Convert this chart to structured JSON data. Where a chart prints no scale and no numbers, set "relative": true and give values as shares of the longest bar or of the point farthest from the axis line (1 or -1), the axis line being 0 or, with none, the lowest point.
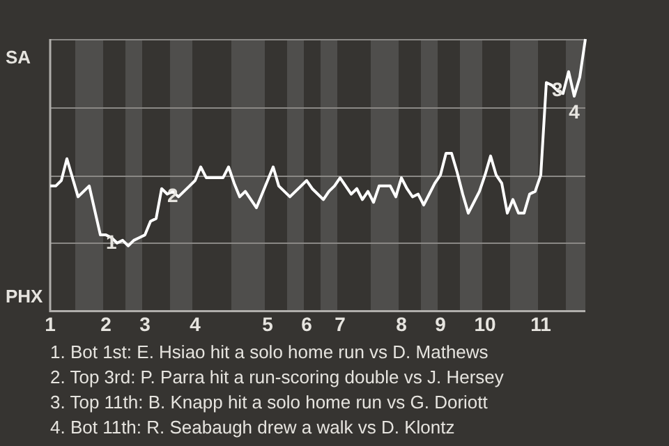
{
  "chart_data": {
    "type": "line",
    "relative": true,
    "categories": [
      "1",
      null,
      null,
      null,
      null,
      null,
      null,
      null,
      null,
      null,
      "2",
      null,
      null,
      null,
      null,
      null,
      null,
      "3",
      null,
      null,
      null,
      null,
      null,
      null,
      null,
      null,
      "4",
      null,
      null,
      null,
      null,
      null,
      null,
      null,
      null,
      null,
      null,
      null,
      null,
      "5",
      null,
      null,
      null,
      null,
      null,
      null,
      "6",
      null,
      null,
      null,
      null,
      null,
      "7",
      null,
      null,
      null,
      null,
      null,
      null,
      null,
      null,
      null,
      null,
      "8",
      null,
      null,
      null,
      null,
      null,
      null,
      "9",
      null,
      null,
      null,
      null,
      null,
      null,
      null,
      "10",
      null,
      null,
      null,
      null,
      null,
      null,
      null,
      null,
      null,
      "11",
      null,
      null,
      null,
      null,
      null,
      null,
      null,
      null
    ],
    "series": [
      {
        "color": "#ffffff",
        "values": [
          0.46,
          0.46,
          0.48,
          0.56,
          0.49,
          0.42,
          0.44,
          0.46,
          0.37,
          0.28,
          0.28,
          0.27,
          0.25,
          0.26,
          0.24,
          0.26,
          0.27,
          0.28,
          0.33,
          0.34,
          0.45,
          0.43,
          0.44,
          0.42,
          0.44,
          0.46,
          0.48,
          0.53,
          0.49,
          0.49,
          0.49,
          0.49,
          0.53,
          0.47,
          0.42,
          0.44,
          0.41,
          0.38,
          0.43,
          0.48,
          0.53,
          0.46,
          0.44,
          0.42,
          0.44,
          0.46,
          0.48,
          0.45,
          0.43,
          0.41,
          0.44,
          0.46,
          0.49,
          0.46,
          0.43,
          0.45,
          0.41,
          0.44,
          0.4,
          0.46,
          0.46,
          0.46,
          0.42,
          0.49,
          0.45,
          0.42,
          0.43,
          0.39,
          0.43,
          0.47,
          0.5,
          0.58,
          0.58,
          0.51,
          0.43,
          0.36,
          0.4,
          0.44,
          0.5,
          0.57,
          0.5,
          0.47,
          0.36,
          0.41,
          0.36,
          0.36,
          0.43,
          0.44,
          0.5,
          0.84,
          0.83,
          0.81,
          0.8,
          0.88,
          0.79,
          0.86,
          1
        ]
      }
    ],
    "grid": true,
    "marker": "none",
    "annotations": [
      "SA",
      "PHX",
      {
        "text": "1",
        "y": 0.28
      },
      {
        "text": "2",
        "y": 0.45
      },
      {
        "text": "3",
        "y": 0.84
      },
      {
        "text": "4",
        "y": 0.79
      },
      "1. Bot 1st: E. Hsiao hit a solo home run vs D. Mathews",
      "2. Top 3rd: P. Parra hit a run-scoring double vs J. Hersey",
      "3. Top 11th: B. Knapp hit a solo home run vs G. Doriott",
      "4. Bot 11th: R. Seabaugh drew a walk vs D. Klontz"
    ]
  }
}
